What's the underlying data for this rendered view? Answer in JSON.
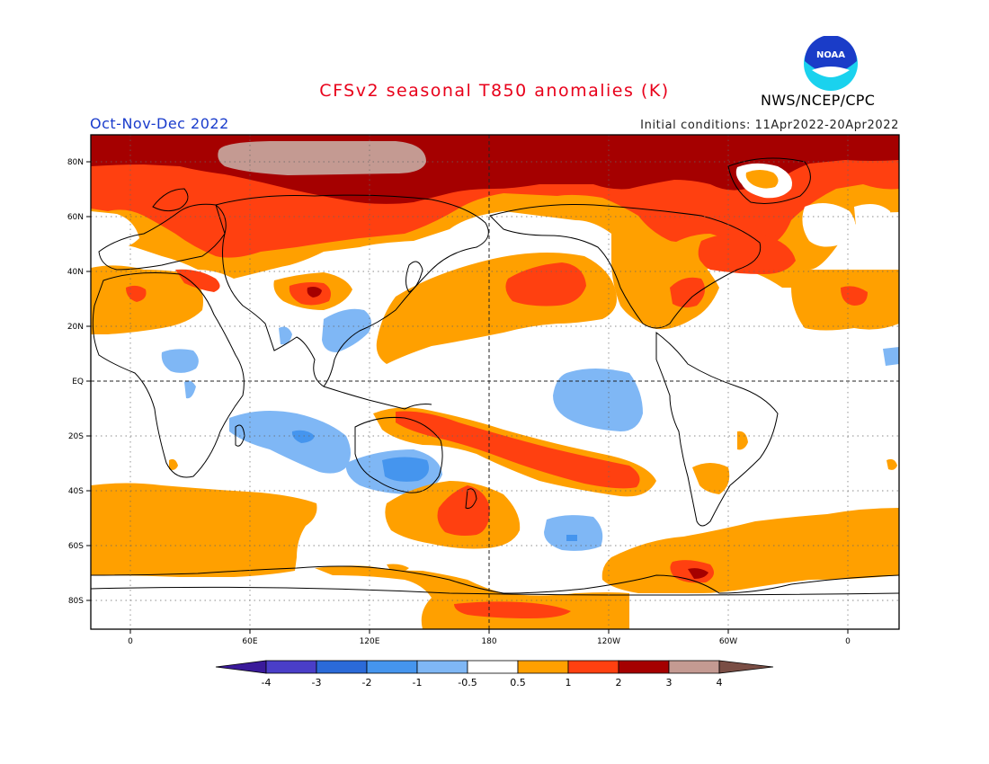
{
  "title": "CFSv2 seasonal T850 anomalies (K)",
  "season": "Oct-Nov-Dec 2022",
  "initial_conditions": "Initial conditions: 11Apr2022-20Apr2022",
  "agency": "NWS/NCEP/CPC",
  "logo_text": "NOAA",
  "map": {
    "lat_labels": [
      "80N",
      "60N",
      "40N",
      "20N",
      "EQ",
      "20S",
      "40S",
      "60S",
      "80S"
    ],
    "lon_labels": [
      "0",
      "60E",
      "120E",
      "180",
      "120W",
      "60W",
      "0"
    ]
  },
  "legend": {
    "tick_labels": [
      "-4",
      "-3",
      "-2",
      "-1",
      "-0.5",
      "0.5",
      "1",
      "2",
      "3",
      "4"
    ],
    "colors": [
      "#3a1a9a",
      "#4a3ec8",
      "#2b6ad8",
      "#4595ee",
      "#7fb7f5",
      "#ffffff",
      "#ffa000",
      "#ff4010",
      "#a50000",
      "#c49a92",
      "#7a4e45"
    ]
  },
  "colors": {
    "orange": "#ffa000",
    "red_orange": "#ff4010",
    "dark_red": "#a50000",
    "tan": "#c49a92",
    "light_blue": "#7fb7f5",
    "medium_blue": "#4595ee"
  }
}
